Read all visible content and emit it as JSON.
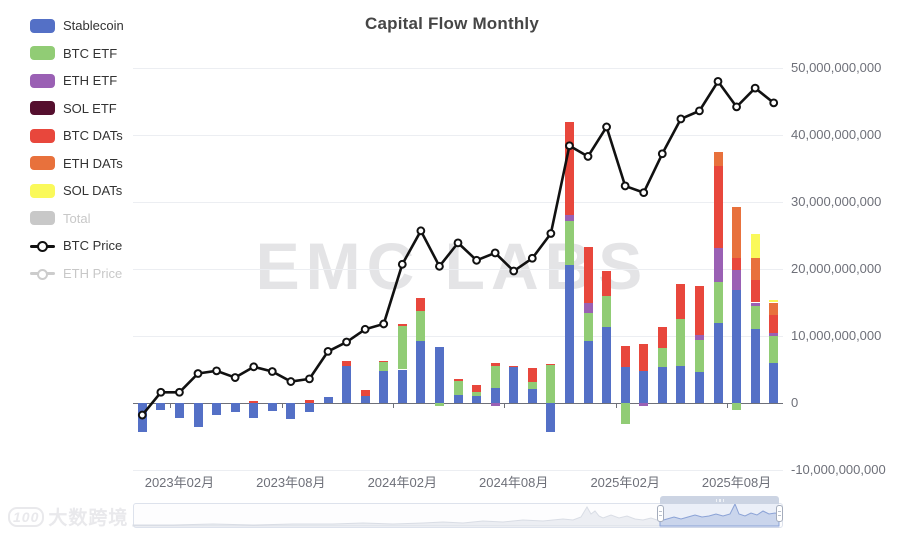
{
  "title": "Capital Flow Monthly",
  "watermarks": {
    "center": "EMC LABS",
    "logo_num": "100",
    "logo_text": "大数跨境"
  },
  "colors": {
    "stablecoin": "#5470c6",
    "btc_etf": "#91cc75",
    "eth_etf": "#9a60b4",
    "sol_etf": "#550f2e",
    "btc_dats": "#e8473c",
    "eth_dats": "#e8713c",
    "sol_dats": "#faf95a",
    "total": "#c8c8c8",
    "btc_price": "#111111",
    "eth_price": "#cccccc",
    "axis_label": "#6e7079",
    "grid": "#eceef2"
  },
  "legend": {
    "items": [
      {
        "label": "Stablecoin",
        "color_key": "stablecoin",
        "type": "swatch",
        "disabled": false
      },
      {
        "label": "BTC ETF",
        "color_key": "btc_etf",
        "type": "swatch",
        "disabled": false
      },
      {
        "label": "ETH ETF",
        "color_key": "eth_etf",
        "type": "swatch",
        "disabled": false
      },
      {
        "label": "SOL ETF",
        "color_key": "sol_etf",
        "type": "swatch",
        "disabled": false
      },
      {
        "label": "BTC DATs",
        "color_key": "btc_dats",
        "type": "swatch",
        "disabled": false
      },
      {
        "label": "ETH DATs",
        "color_key": "eth_dats",
        "type": "swatch",
        "disabled": false
      },
      {
        "label": "SOL DATs",
        "color_key": "sol_dats",
        "type": "swatch",
        "disabled": false
      },
      {
        "label": "Total",
        "color_key": "total",
        "type": "swatch",
        "disabled": true
      },
      {
        "label": "BTC Price",
        "color_key": "btc_price",
        "type": "line",
        "disabled": false
      },
      {
        "label": "ETH Price",
        "color_key": "eth_price",
        "type": "line",
        "disabled": true
      }
    ]
  },
  "y_axis": {
    "labels": [
      "50,000,000,000",
      "40,000,000,000",
      "30,000,000,000",
      "20,000,000,000",
      "10,000,000,000",
      "0",
      "-10,000,000,000"
    ],
    "values_billions": [
      50,
      40,
      30,
      20,
      10,
      0,
      -10
    ]
  },
  "x_axis": {
    "labels": [
      "2023年02月",
      "2023年08月",
      "2024年02月",
      "2024年08月",
      "2025年02月",
      "2025年08月"
    ],
    "label_slot_indices": [
      2,
      8,
      14,
      20,
      26,
      32
    ]
  },
  "chart_data": {
    "type": "bar",
    "title": "Capital Flow Monthly",
    "unit": "USD (values are billions, axis shows full numbers)",
    "ylim_billions": [
      -10,
      50
    ],
    "grid": true,
    "legend_position": "left",
    "categories": [
      "2022-12",
      "2023-01",
      "2023-02",
      "2023-03",
      "2023-04",
      "2023-05",
      "2023-06",
      "2023-07",
      "2023-08",
      "2023-09",
      "2023-10",
      "2023-11",
      "2023-12",
      "2024-01",
      "2024-02",
      "2024-03",
      "2024-04",
      "2024-05",
      "2024-06",
      "2024-07",
      "2024-08",
      "2024-09",
      "2024-10",
      "2024-11",
      "2024-12",
      "2025-01",
      "2025-02",
      "2025-03",
      "2025-04",
      "2025-05",
      "2025-06",
      "2025-07",
      "2025-08",
      "2025-09",
      "2025-10"
    ],
    "stacked_series": [
      {
        "name": "Stablecoin",
        "color_key": "stablecoin",
        "values": [
          -4.3,
          -1.0,
          -2.3,
          -3.6,
          -1.8,
          -1.3,
          -2.3,
          -1.2,
          -2.4,
          -1.4,
          0.9,
          5.5,
          1.1,
          4.8,
          5.0,
          9.2,
          8.3,
          1.2,
          1.0,
          2.2,
          5.3,
          2.1,
          -4.3,
          20.6,
          9.2,
          11.3,
          5.3,
          4.8,
          5.3,
          5.5,
          4.6,
          12.0,
          16.8,
          11.0,
          6.0
        ]
      },
      {
        "name": "BTC ETF",
        "color_key": "btc_etf",
        "values": [
          0,
          0,
          0,
          0,
          0,
          0,
          0,
          0,
          0,
          0,
          0,
          0,
          0,
          1.3,
          6.5,
          4.6,
          -0.5,
          2.1,
          0.65,
          3.3,
          0,
          1.1,
          5.6,
          6.5,
          4.2,
          4.6,
          -3.2,
          0,
          2.9,
          7.0,
          4.8,
          6.0,
          -1.1,
          3.5,
          4.0
        ]
      },
      {
        "name": "ETH ETF",
        "color_key": "eth_etf",
        "values": [
          0,
          0,
          0,
          0,
          0,
          0,
          0,
          0,
          0,
          0,
          0,
          0,
          0,
          0,
          0,
          0,
          0,
          0,
          0,
          -0.5,
          0,
          0,
          0,
          1.0,
          1.5,
          0,
          0,
          -0.4,
          0,
          0,
          0.7,
          5.1,
          3.1,
          0.5,
          0.4
        ]
      },
      {
        "name": "SOL ETF",
        "color_key": "sol_etf",
        "values": [
          0,
          0,
          0,
          0,
          0,
          0,
          0,
          0,
          0,
          0,
          0,
          0,
          0,
          0,
          0,
          0,
          0,
          0,
          0,
          0,
          0,
          0,
          0,
          0,
          0,
          0,
          0,
          0,
          0,
          0,
          0,
          0,
          0,
          0,
          0
        ]
      },
      {
        "name": "BTC DATs",
        "color_key": "btc_dats",
        "values": [
          0,
          0,
          0,
          0,
          0,
          0,
          0.3,
          0,
          0,
          0.4,
          0,
          0.7,
          0.85,
          0.2,
          0.3,
          1.9,
          0,
          0.35,
          1.0,
          0.4,
          0.2,
          2.0,
          0.2,
          13.9,
          8.4,
          3.8,
          3.2,
          4.0,
          3.1,
          5.2,
          7.4,
          12.3,
          1.7,
          3.4,
          2.7
        ]
      },
      {
        "name": "ETH DATs",
        "color_key": "eth_dats",
        "values": [
          0,
          0,
          0,
          0,
          0,
          0,
          0,
          0,
          0,
          0,
          0,
          0,
          0,
          0,
          0,
          0,
          0,
          0,
          0,
          0,
          0,
          0,
          0,
          0,
          0,
          0,
          0,
          0,
          0,
          0,
          0,
          2.1,
          7.7,
          3.3,
          1.9
        ]
      },
      {
        "name": "SOL DATs",
        "color_key": "sol_dats",
        "values": [
          0,
          0,
          0,
          0,
          0,
          0,
          0,
          0,
          0,
          0,
          0,
          0,
          0,
          0,
          0,
          0,
          0,
          0,
          0,
          0,
          0,
          0,
          0,
          0,
          0,
          0,
          0,
          0,
          0,
          0,
          0,
          0,
          0,
          3.5,
          0.3
        ]
      }
    ],
    "line_series": [
      {
        "name": "BTC Price",
        "color_key": "btc_price",
        "marker": "open-circle",
        "values_axis_billions": [
          -1.8,
          1.6,
          1.6,
          4.4,
          4.8,
          3.8,
          5.4,
          4.7,
          3.2,
          3.6,
          7.7,
          9.1,
          11.0,
          11.8,
          20.7,
          25.7,
          20.4,
          23.9,
          21.3,
          22.4,
          19.7,
          21.6,
          25.3,
          38.4,
          36.8,
          41.2,
          32.4,
          31.4,
          37.2,
          42.4,
          43.6,
          48.0,
          44.2,
          47.0,
          44.8
        ]
      }
    ],
    "navigator": {
      "selected_range_slots": [
        28.4,
        34.8
      ],
      "gray_profile": [
        [
          0,
          1
        ],
        [
          40,
          1
        ],
        [
          80,
          2
        ],
        [
          120,
          1
        ],
        [
          160,
          2
        ],
        [
          200,
          2
        ],
        [
          230,
          3
        ],
        [
          260,
          2
        ],
        [
          290,
          3
        ],
        [
          310,
          4
        ],
        [
          330,
          3
        ],
        [
          350,
          5
        ],
        [
          370,
          4
        ],
        [
          390,
          6
        ],
        [
          410,
          5
        ],
        [
          430,
          7
        ],
        [
          440,
          6
        ],
        [
          448,
          9
        ],
        [
          454,
          19
        ],
        [
          458,
          12
        ],
        [
          462,
          15
        ],
        [
          466,
          10
        ],
        [
          470,
          8
        ],
        [
          478,
          11
        ],
        [
          486,
          8
        ],
        [
          494,
          10
        ],
        [
          502,
          7
        ],
        [
          510,
          6
        ],
        [
          518,
          8
        ],
        [
          527,
          5
        ]
      ],
      "blue_profile": [
        [
          527,
          5
        ],
        [
          534,
          7
        ],
        [
          541,
          9
        ],
        [
          548,
          7
        ],
        [
          555,
          9
        ],
        [
          562,
          11
        ],
        [
          569,
          9
        ],
        [
          576,
          10
        ],
        [
          583,
          12
        ],
        [
          590,
          10
        ],
        [
          597,
          12
        ],
        [
          602,
          22
        ],
        [
          606,
          12
        ],
        [
          612,
          10
        ],
        [
          618,
          13
        ],
        [
          624,
          11
        ],
        [
          630,
          15
        ],
        [
          636,
          12
        ],
        [
          642,
          13
        ],
        [
          646,
          12
        ]
      ]
    }
  }
}
